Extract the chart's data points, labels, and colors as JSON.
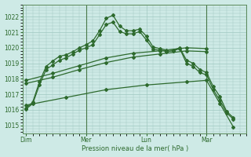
{
  "background_color": "#ceeae6",
  "grid_color": "#a0c8c0",
  "line_color": "#2d6a2d",
  "title": "Pression niveau de la mer( hPa )",
  "ylim": [
    1014.5,
    1022.8
  ],
  "yticks": [
    1015,
    1016,
    1017,
    1018,
    1019,
    1020,
    1021,
    1022
  ],
  "day_labels": [
    "Dim",
    "Mer",
    "Lun",
    "Mar"
  ],
  "day_positions": [
    0,
    9,
    18,
    27
  ],
  "xlim": [
    -0.5,
    33
  ],
  "vline_positions": [
    9,
    27
  ],
  "series": [
    {
      "x": [
        0,
        1,
        2,
        3,
        4,
        5,
        6,
        7,
        8,
        9,
        10,
        11,
        12,
        13,
        14,
        15,
        16,
        17,
        18,
        19,
        20,
        21,
        22,
        23,
        24,
        25,
        26,
        27,
        28,
        29,
        30,
        31
      ],
      "y": [
        1016.1,
        1016.5,
        1017.8,
        1018.8,
        1019.15,
        1019.45,
        1019.55,
        1019.75,
        1020.0,
        1020.2,
        1020.45,
        1021.1,
        1021.9,
        1022.1,
        1021.4,
        1021.1,
        1021.1,
        1021.2,
        1020.75,
        1020.05,
        1019.95,
        1019.85,
        1019.85,
        1020.0,
        1019.2,
        1019.0,
        1018.6,
        1018.4,
        1017.5,
        1016.85,
        1015.9,
        1015.5
      ]
    },
    {
      "x": [
        0,
        1,
        2,
        3,
        4,
        5,
        6,
        7,
        8,
        9,
        10,
        11,
        12,
        13,
        14,
        15,
        16,
        17,
        18,
        19,
        20,
        21,
        22,
        23,
        24,
        25,
        26,
        27,
        28,
        29,
        30,
        31
      ],
      "y": [
        1016.05,
        1016.4,
        1017.6,
        1018.6,
        1018.9,
        1019.2,
        1019.35,
        1019.6,
        1019.85,
        1020.0,
        1020.2,
        1020.85,
        1021.5,
        1021.65,
        1021.05,
        1020.9,
        1020.9,
        1021.05,
        1020.5,
        1019.9,
        1019.85,
        1019.75,
        1019.8,
        1019.95,
        1019.0,
        1018.8,
        1018.4,
        1018.25,
        1017.3,
        1016.6,
        1015.8,
        1015.4
      ]
    },
    {
      "x": [
        0,
        4,
        8,
        12,
        16,
        20,
        24,
        27
      ],
      "y": [
        1017.9,
        1018.35,
        1018.85,
        1019.35,
        1019.65,
        1019.8,
        1020.0,
        1019.95
      ]
    },
    {
      "x": [
        0,
        4,
        8,
        12,
        16,
        20,
        24,
        27
      ],
      "y": [
        1017.7,
        1018.1,
        1018.6,
        1019.05,
        1019.4,
        1019.6,
        1019.8,
        1019.75
      ]
    },
    {
      "x": [
        0,
        6,
        12,
        18,
        24,
        27,
        29,
        31
      ],
      "y": [
        1016.3,
        1016.8,
        1017.3,
        1017.6,
        1017.8,
        1017.9,
        1016.4,
        1014.9
      ]
    }
  ],
  "marker_size": 2.0,
  "line_width": 0.9
}
